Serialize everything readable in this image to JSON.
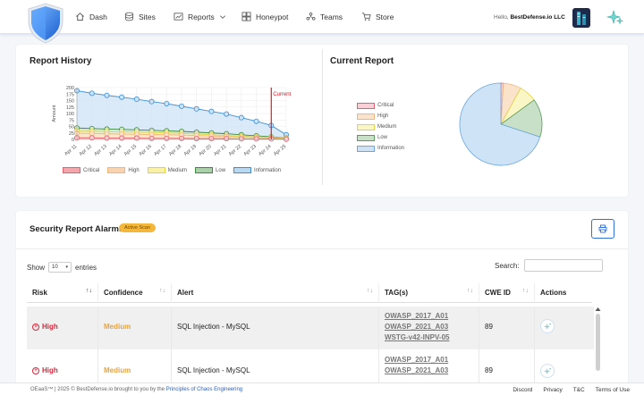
{
  "nav": {
    "items": [
      {
        "label": "Dash",
        "icon": "home-icon"
      },
      {
        "label": "Sites",
        "icon": "sites-icon"
      },
      {
        "label": "Reports",
        "icon": "reports-icon",
        "dropdown": true
      },
      {
        "label": "Honeypot",
        "icon": "honeypot-icon"
      },
      {
        "label": "Teams",
        "icon": "teams-icon"
      },
      {
        "label": "Store",
        "icon": "cart-icon"
      }
    ],
    "hello_prefix": "Hello, ",
    "org_name": "BestDefense.io LLC"
  },
  "report_history": {
    "title": "Report History",
    "chart_data": {
      "type": "line",
      "x": [
        "Apr 11",
        "Apr 12",
        "Apr 13",
        "Apr 14",
        "Apr 15",
        "Apr 16",
        "Apr 17",
        "Apr 18",
        "Apr 19",
        "Apr 20",
        "Apr 21",
        "Apr 22",
        "Apr 23",
        "Apr 24",
        "Apr 25"
      ],
      "ylabel": "Amount",
      "ylim": [
        0,
        200
      ],
      "yticks": [
        0,
        25,
        50,
        75,
        100,
        125,
        150,
        175,
        200
      ],
      "marker_label": "Current",
      "marker_at": "Apr 24",
      "series": [
        {
          "name": "Information",
          "color": "#3b8fd9",
          "fill": "#cfe3f6",
          "values": [
            188,
            178,
            170,
            163,
            155,
            146,
            138,
            128,
            118,
            108,
            98,
            84,
            70,
            54,
            18
          ]
        },
        {
          "name": "Low",
          "color": "#3f8a3f",
          "fill": "#d4ead4",
          "values": [
            44,
            42,
            40,
            39,
            37,
            35,
            33,
            31,
            28,
            25,
            22,
            18,
            14,
            10,
            5
          ]
        },
        {
          "name": "Medium",
          "color": "#e2d43d",
          "fill": "#fbf6c6",
          "values": [
            32,
            31,
            30,
            29,
            28,
            27,
            25,
            23,
            21,
            18,
            15,
            12,
            10,
            8,
            4
          ]
        },
        {
          "name": "High",
          "color": "#f2b57a",
          "fill": "#fbe2cb",
          "values": [
            24,
            23,
            22,
            21,
            20,
            19,
            18,
            17,
            15,
            13,
            11,
            9,
            7,
            5,
            3
          ]
        },
        {
          "name": "Critical",
          "color": "#e2636f",
          "fill": "#f9d0d5",
          "values": [
            6,
            6,
            5,
            5,
            5,
            4,
            4,
            4,
            3,
            3,
            3,
            2,
            2,
            2,
            1
          ]
        }
      ],
      "legend": [
        "Critical",
        "High",
        "Medium",
        "Low",
        "Information"
      ],
      "legend_colors": {
        "Critical": "#f4a6ad",
        "High": "#f9d3b0",
        "Medium": "#faf0a6",
        "Low": "#a9d0a9",
        "Information": "#b9d8f2"
      },
      "legend_position": "bottom"
    }
  },
  "current_report": {
    "title": "Current Report",
    "chart_data": {
      "type": "pie",
      "labels": [
        "Critical",
        "High",
        "Medium",
        "Low",
        "Information"
      ],
      "values": [
        1,
        7,
        7,
        15,
        70
      ],
      "colors": [
        "#f9d0d5",
        "#fbe2cb",
        "#fbf6c6",
        "#c8e0c8",
        "#cfe3f6"
      ],
      "stroke_colors": [
        "#e2636f",
        "#f2b57a",
        "#e2d43d",
        "#5a9a5a",
        "#6aa7de"
      ],
      "legend_position": "left"
    }
  },
  "alarms": {
    "title": "Security Report Alarms",
    "badge": "Active Scan",
    "show_label": "Show",
    "entries_value": "10",
    "entries_label": "entries",
    "search_label": "Search:",
    "columns": [
      "Risk",
      "Confidence",
      "Alert",
      "TAG(s)",
      "CWE ID",
      "Actions"
    ],
    "rows": [
      {
        "risk": "High",
        "confidence": "Medium",
        "alert": "SQL Injection - MySQL",
        "tags": [
          "OWASP_2017_A01",
          "OWASP_2021_A03",
          "WSTG-v42-INPV-05"
        ],
        "cwe": "89"
      },
      {
        "risk": "High",
        "confidence": "Medium",
        "alert": "SQL Injection - MySQL",
        "tags": [
          "OWASP_2017_A01",
          "OWASP_2021_A03"
        ],
        "cwe": "89"
      }
    ]
  },
  "footer": {
    "copyright": "OEaaS™ | 2025 © BestDefense.io brought to you by the ",
    "link": "Principles of Chaos Engineering",
    "links": [
      "Discord",
      "Privacy",
      "T&C",
      "Terms of Use"
    ]
  }
}
